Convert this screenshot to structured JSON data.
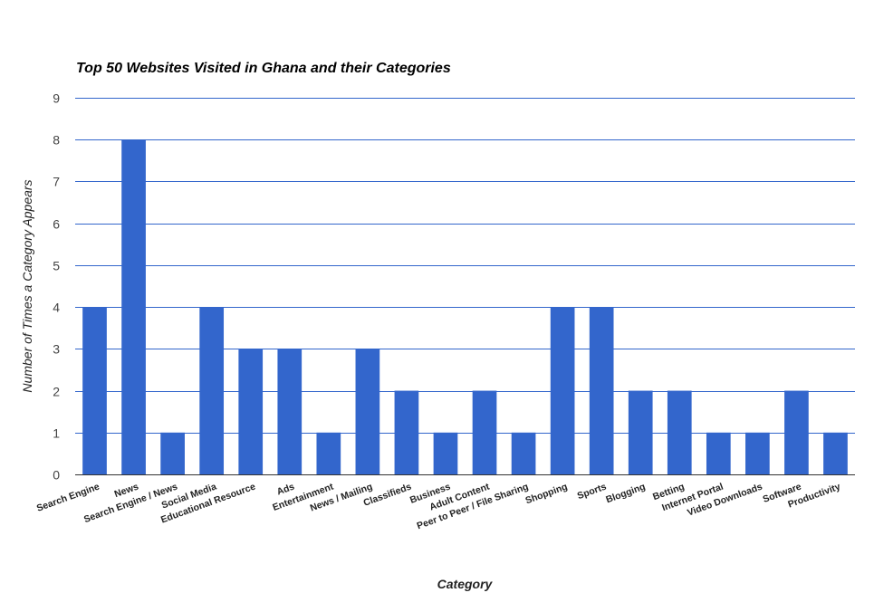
{
  "chart_data": {
    "type": "bar",
    "title": "Top 50 Websites Visited in Ghana and their Categories",
    "xlabel": "Category",
    "ylabel": "Number of Times a Category Appears",
    "ylim": [
      0,
      9
    ],
    "yticks": [
      "0",
      "1",
      "2",
      "3",
      "4",
      "5",
      "6",
      "7",
      "8",
      "9"
    ],
    "grid": true,
    "bar_color": "#3366cc",
    "categories": [
      "Search Engine",
      "News",
      "Search Engine / News",
      "Social Media",
      "Educational Resource",
      "Ads",
      "Entertainment",
      "News / Mailing",
      "Classifieds",
      "Business",
      "Adult Content",
      "Peer to Peer / File Sharing",
      "Shopping",
      "Sports",
      "Blogging",
      "Betting",
      "Internet Portal",
      "Video Downloads",
      "Software",
      "Productivity"
    ],
    "values": [
      4,
      8,
      1,
      4,
      3,
      3,
      1,
      3,
      2,
      1,
      2,
      1,
      4,
      4,
      2,
      2,
      1,
      1,
      2,
      1
    ]
  }
}
